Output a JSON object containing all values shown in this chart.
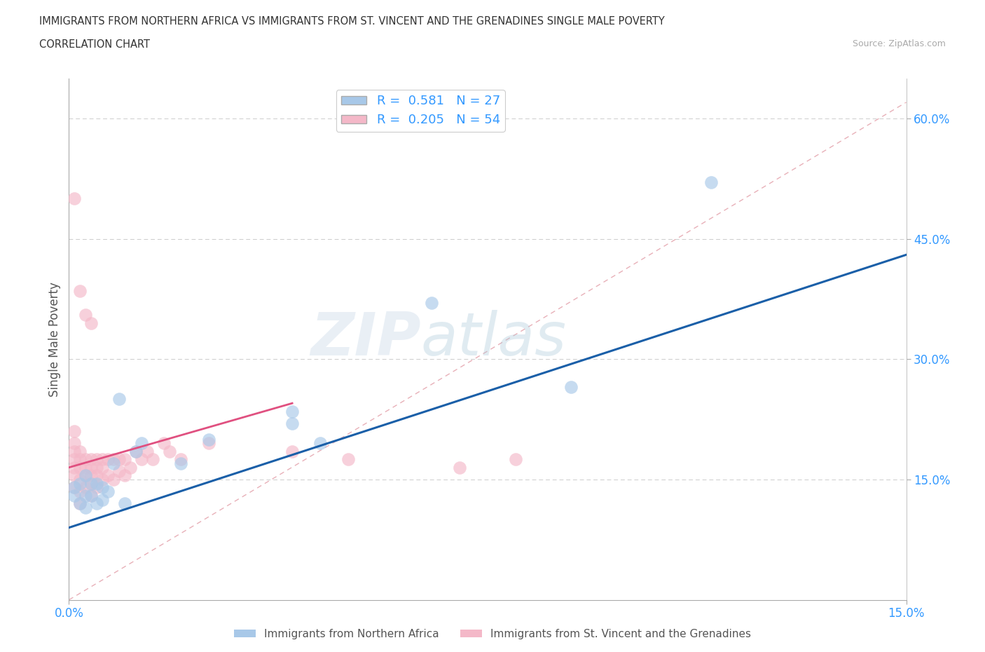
{
  "title_line1": "IMMIGRANTS FROM NORTHERN AFRICA VS IMMIGRANTS FROM ST. VINCENT AND THE GRENADINES SINGLE MALE POVERTY",
  "title_line2": "CORRELATION CHART",
  "source": "Source: ZipAtlas.com",
  "ylabel": "Single Male Poverty",
  "xlim": [
    0.0,
    0.15
  ],
  "ylim": [
    0.0,
    0.65
  ],
  "blue_color": "#a8c8e8",
  "pink_color": "#f4b8c8",
  "blue_line_color": "#1a5fa8",
  "pink_line_color": "#e05080",
  "tick_color": "#3399ff",
  "ref_line_color": "#e8b0b8",
  "grid_color": "#cccccc",
  "R_blue": 0.581,
  "N_blue": 27,
  "R_pink": 0.205,
  "N_pink": 54,
  "blue_x": [
    0.001,
    0.001,
    0.002,
    0.002,
    0.003,
    0.003,
    0.003,
    0.004,
    0.004,
    0.005,
    0.005,
    0.006,
    0.006,
    0.007,
    0.008,
    0.009,
    0.01,
    0.012,
    0.013,
    0.02,
    0.025,
    0.04,
    0.04,
    0.045,
    0.065,
    0.09,
    0.115
  ],
  "blue_y": [
    0.13,
    0.14,
    0.12,
    0.145,
    0.115,
    0.13,
    0.155,
    0.13,
    0.145,
    0.12,
    0.145,
    0.125,
    0.14,
    0.135,
    0.17,
    0.25,
    0.12,
    0.185,
    0.195,
    0.17,
    0.2,
    0.22,
    0.235,
    0.195,
    0.37,
    0.265,
    0.52
  ],
  "pink_x": [
    0.001,
    0.001,
    0.001,
    0.001,
    0.001,
    0.001,
    0.001,
    0.002,
    0.002,
    0.002,
    0.002,
    0.002,
    0.002,
    0.003,
    0.003,
    0.003,
    0.003,
    0.004,
    0.004,
    0.004,
    0.004,
    0.004,
    0.005,
    0.005,
    0.005,
    0.005,
    0.006,
    0.006,
    0.006,
    0.007,
    0.007,
    0.008,
    0.008,
    0.009,
    0.009,
    0.01,
    0.01,
    0.011,
    0.012,
    0.013,
    0.014,
    0.015,
    0.017,
    0.018,
    0.02,
    0.025,
    0.04,
    0.05,
    0.07,
    0.08,
    0.001,
    0.002,
    0.003,
    0.004
  ],
  "pink_y": [
    0.14,
    0.155,
    0.165,
    0.175,
    0.185,
    0.195,
    0.21,
    0.12,
    0.135,
    0.15,
    0.165,
    0.175,
    0.185,
    0.14,
    0.155,
    0.165,
    0.175,
    0.13,
    0.145,
    0.155,
    0.165,
    0.175,
    0.14,
    0.155,
    0.165,
    0.175,
    0.15,
    0.165,
    0.175,
    0.155,
    0.175,
    0.15,
    0.175,
    0.16,
    0.175,
    0.155,
    0.175,
    0.165,
    0.185,
    0.175,
    0.185,
    0.175,
    0.195,
    0.185,
    0.175,
    0.195,
    0.185,
    0.175,
    0.165,
    0.175,
    0.5,
    0.385,
    0.355,
    0.345
  ],
  "watermark_part1": "ZIP",
  "watermark_part2": "atlas",
  "background_color": "#ffffff"
}
